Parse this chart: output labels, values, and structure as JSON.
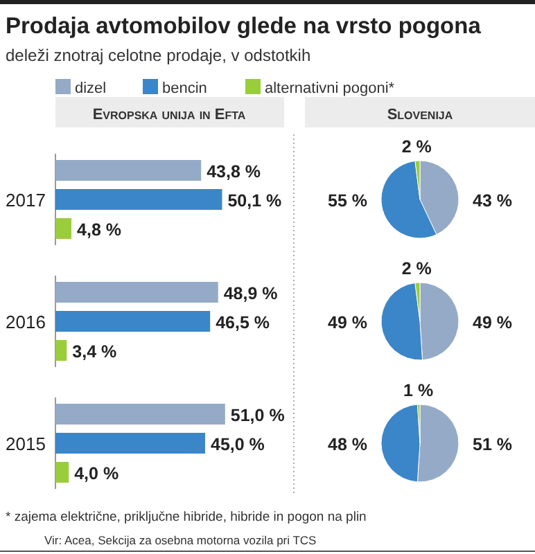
{
  "chart_data": [
    {
      "type": "other",
      "title": "Prodaja avtomobilov glede na vrsto pogona",
      "subtitle": "deleži znotraj celotne prodaje, v odstotkih",
      "annotations": [
        "* zajema električne, priključne hibride, hibride in pogon na plin",
        "Vir: Acea, Sekcija za osebna motorna vozila pri TCS"
      ]
    },
    {
      "type": "bar",
      "orientation": "horizontal",
      "title": "Evropska unija in Efta",
      "categories": [
        "2017",
        "2016",
        "2015"
      ],
      "legend": "top",
      "series": [
        {
          "name": "dizel",
          "color": "#94aac6",
          "values": [
            43.8,
            48.9,
            51.0
          ],
          "value_labels": [
            "43,8 %",
            "48,9 %",
            "51,0 %"
          ]
        },
        {
          "name": "bencin",
          "color": "#3b86c8",
          "values": [
            50.1,
            46.5,
            45.0
          ],
          "value_labels": [
            "50,1 %",
            "46,5 %",
            "45,0 %"
          ]
        },
        {
          "name": "alternativni pogoni*",
          "color": "#9acd3c",
          "values": [
            4.8,
            3.4,
            4.0
          ],
          "value_labels": [
            "4,8 %",
            "3,4 %",
            "4,0 %"
          ]
        }
      ]
    },
    {
      "type": "pie",
      "title": "Slovenija",
      "categories": [
        null,
        null,
        null
      ],
      "values": [
        43,
        55,
        2
      ],
      "value_labels": [
        "43 %",
        "55 %",
        "2 %"
      ],
      "colors": [
        "#94aac6",
        "#3b86c8",
        "#9acd3c"
      ]
    },
    {
      "type": "pie",
      "categories": [
        null,
        null,
        null
      ],
      "values": [
        49,
        49,
        2
      ],
      "value_labels": [
        "49 %",
        "49 %",
        "2 %"
      ],
      "colors": [
        "#94aac6",
        "#3b86c8",
        "#9acd3c"
      ]
    },
    {
      "type": "pie",
      "categories": [
        null,
        null,
        null
      ],
      "values": [
        51,
        48,
        1
      ],
      "value_labels": [
        "51 %",
        "48 %",
        "1 %"
      ],
      "colors": [
        "#94aac6",
        "#3b86c8",
        "#9acd3c"
      ]
    }
  ]
}
